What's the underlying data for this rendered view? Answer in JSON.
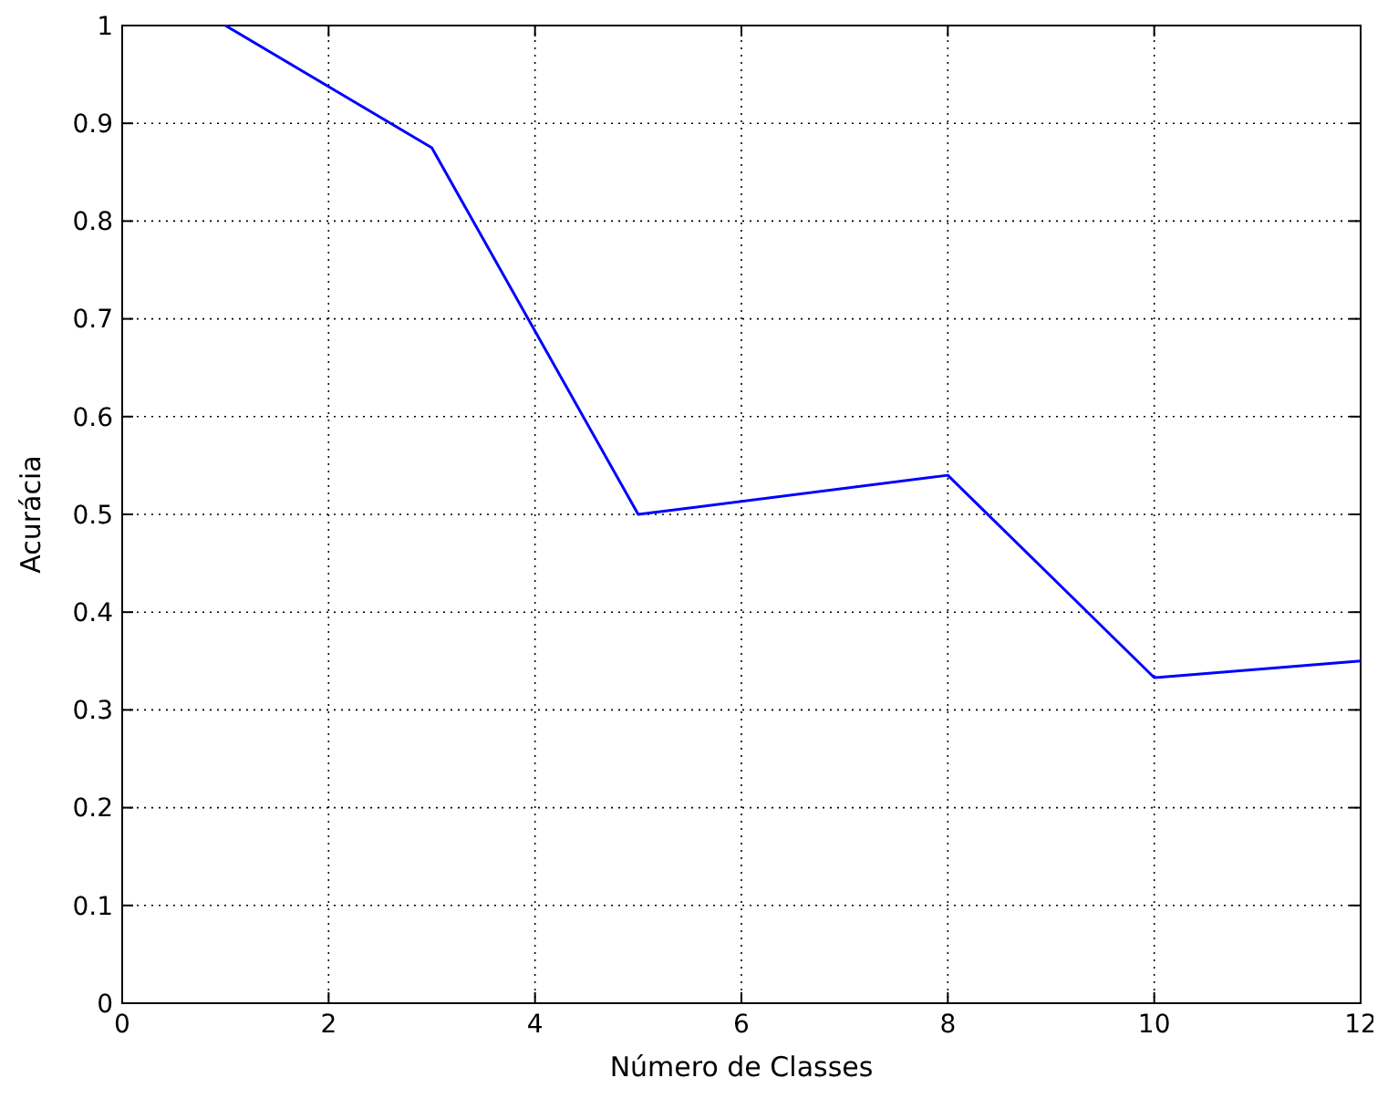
{
  "chart_data": {
    "type": "line",
    "xlabel": "Número de Classes",
    "ylabel": "Acurácia",
    "x": [
      1,
      3,
      5,
      8,
      10,
      12
    ],
    "series": [
      {
        "color": "#0000ff",
        "values": [
          1,
          0.875,
          0.5,
          0.54,
          0.333,
          0.35
        ]
      }
    ],
    "xlim": [
      0,
      12
    ],
    "xticks": [
      0,
      2,
      4,
      6,
      8,
      10,
      12
    ],
    "ylim": [
      0,
      1
    ],
    "yticks": [
      0,
      0.1,
      0.2,
      0.3,
      0.4,
      0.5,
      0.6,
      0.7,
      0.8,
      0.9,
      1
    ],
    "grid": true,
    "marker": "none",
    "line_style": "solid"
  }
}
